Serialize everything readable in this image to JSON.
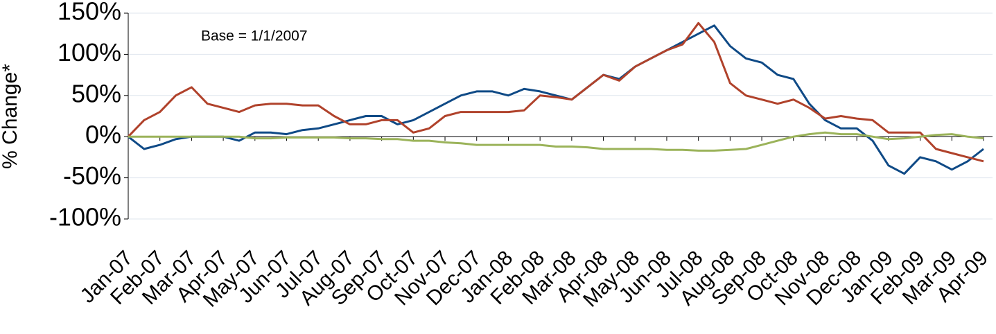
{
  "chart_data": {
    "type": "line",
    "y_label": "% Change*",
    "annotation": "Base = 1/1/2007",
    "categories": [
      "Jan-07",
      null,
      "Feb-07",
      null,
      "Mar-07",
      null,
      "Apr-07",
      null,
      "May-07",
      null,
      "Jun-07",
      null,
      "Jul-07",
      null,
      "Aug-07",
      null,
      "Sep-07",
      null,
      "Oct-07",
      null,
      "Nov-07",
      null,
      "Dec-07",
      null,
      "Jan-08",
      null,
      "Feb-08",
      null,
      "Mar-08",
      null,
      "Apr-08",
      null,
      "May-08",
      null,
      "Jun-08",
      null,
      "Jul-08",
      null,
      "Aug-08",
      null,
      "Sep-08",
      null,
      "Oct-08",
      null,
      "Nov-08",
      null,
      "Dec-08",
      null,
      "Jan-09",
      null,
      "Feb-09",
      null,
      "Mar-09",
      null,
      "Apr-09"
    ],
    "series": [
      {
        "color": "#0f4a86",
        "values": [
          0,
          -15,
          -10,
          -3,
          0,
          0,
          0,
          -5,
          5,
          5,
          3,
          8,
          10,
          15,
          20,
          25,
          25,
          15,
          20,
          30,
          40,
          50,
          55,
          55,
          50,
          58,
          55,
          50,
          45,
          60,
          75,
          70,
          85,
          95,
          105,
          115,
          125,
          135,
          110,
          95,
          90,
          75,
          70,
          40,
          20,
          10,
          10,
          -5,
          -35,
          -45,
          -25,
          -30,
          -40,
          -30,
          -15
        ]
      },
      {
        "color": "#b0422b",
        "values": [
          0,
          20,
          30,
          50,
          60,
          40,
          35,
          30,
          38,
          40,
          40,
          38,
          38,
          25,
          15,
          15,
          20,
          20,
          5,
          10,
          25,
          30,
          30,
          30,
          30,
          32,
          50,
          48,
          45,
          60,
          75,
          68,
          85,
          95,
          105,
          112,
          138,
          115,
          65,
          50,
          45,
          40,
          45,
          35,
          22,
          25,
          22,
          20,
          5,
          5,
          5,
          -15,
          -20,
          -25,
          -30
        ]
      },
      {
        "color": "#9bb35a",
        "values": [
          0,
          0,
          0,
          0,
          0,
          0,
          0,
          0,
          -2,
          -2,
          -1,
          -1,
          -1,
          -1,
          -2,
          -2,
          -3,
          -3,
          -5,
          -5,
          -7,
          -8,
          -10,
          -10,
          -10,
          -10,
          -10,
          -12,
          -12,
          -13,
          -15,
          -15,
          -15,
          -15,
          -16,
          -16,
          -17,
          -17,
          -16,
          -15,
          -10,
          -5,
          0,
          3,
          5,
          3,
          3,
          0,
          -3,
          -2,
          0,
          2,
          3,
          0,
          -2
        ]
      }
    ],
    "ylim": [
      -100,
      150
    ],
    "yticks": [
      {
        "value": -100,
        "label": "-100%"
      },
      {
        "value": -50,
        "label": "-50%"
      },
      {
        "value": 0,
        "label": "0%"
      },
      {
        "value": 50,
        "label": "50%"
      },
      {
        "value": 100,
        "label": "100%"
      },
      {
        "value": 150,
        "label": "150%"
      }
    ],
    "grid": true
  }
}
